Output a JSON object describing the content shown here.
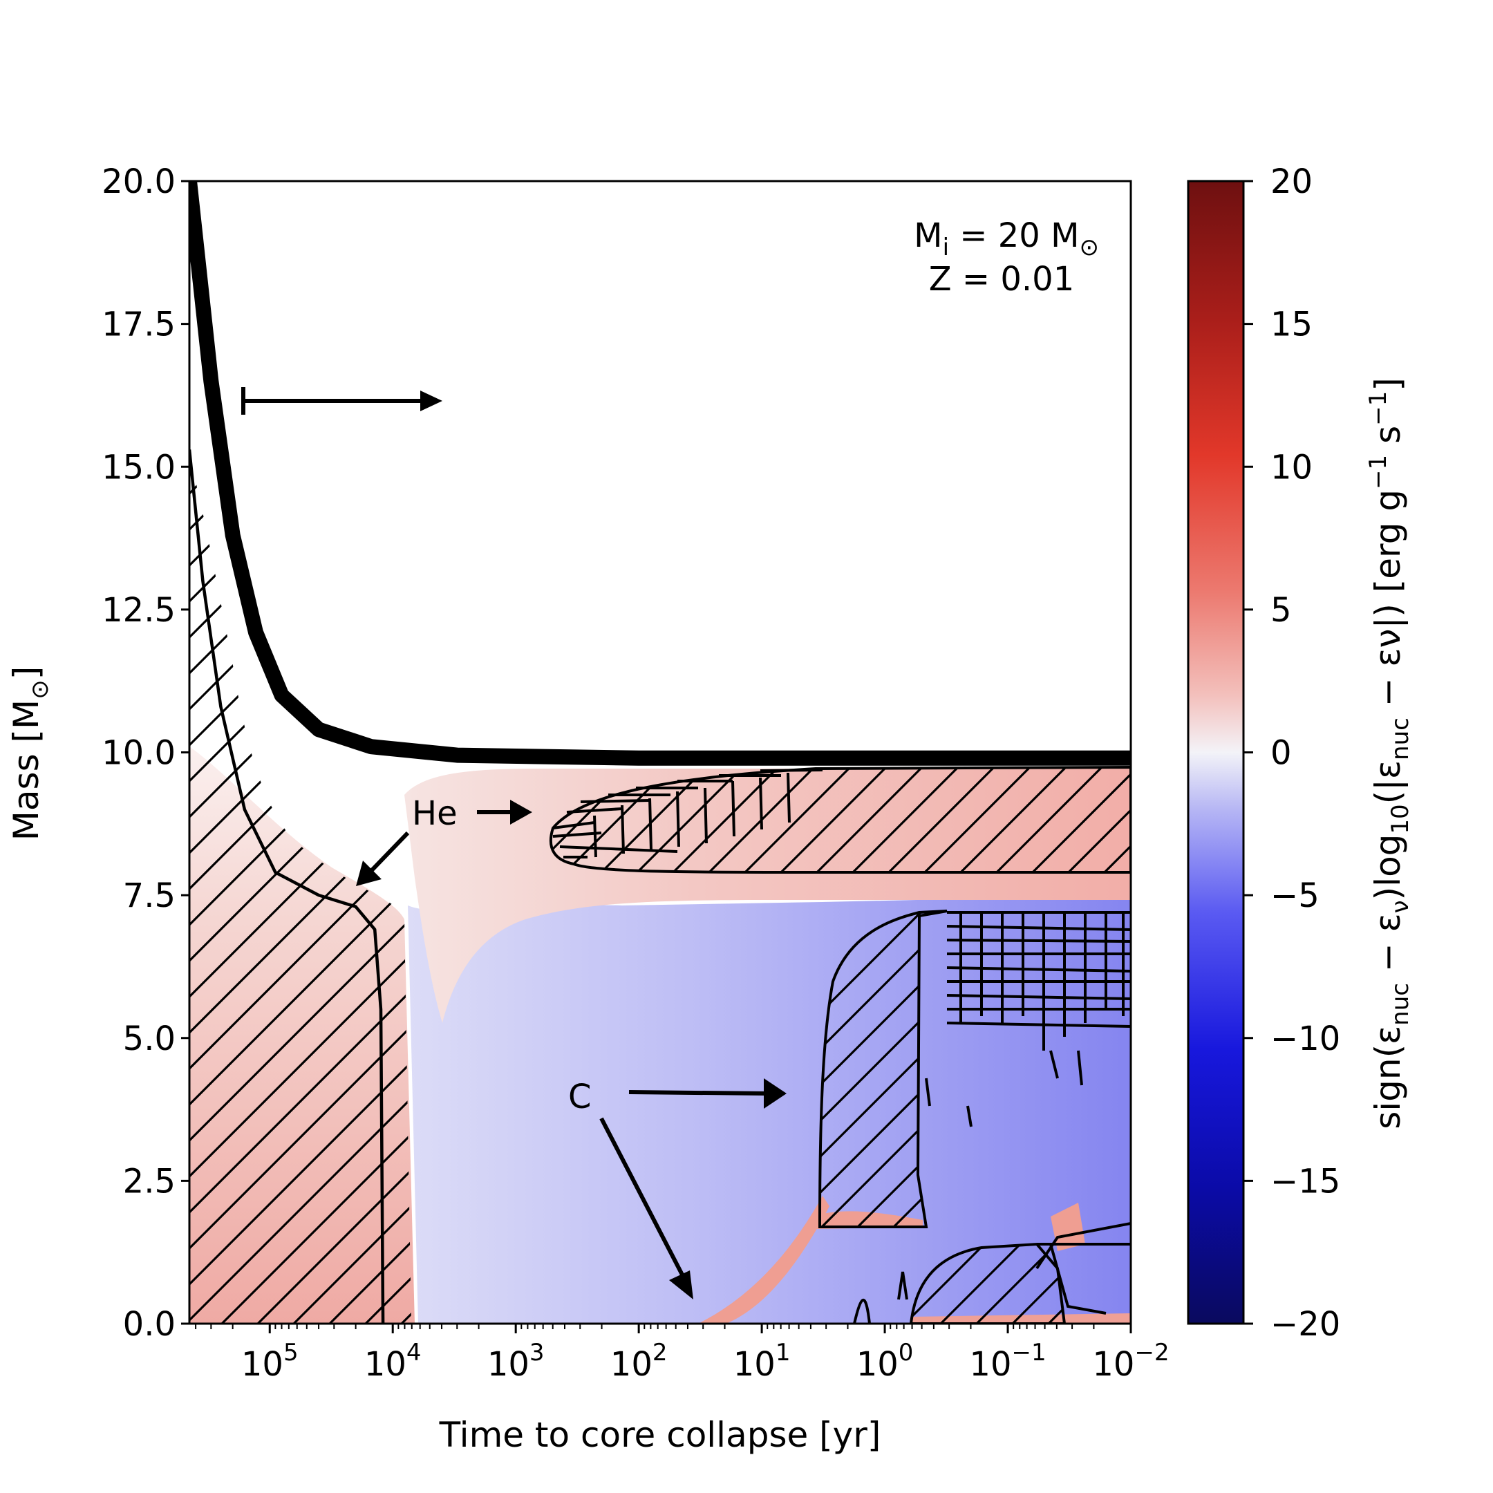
{
  "chart_data": {
    "type": "heatmap",
    "xlabel": "Time to core collapse [yr]",
    "ylabel_main": "Mass [M",
    "ylabel_sun": "⊙",
    "ylabel_end": "]",
    "xscale": "log",
    "xaxis_reversed": true,
    "xlim": [
      450000,
      0.01
    ],
    "ylim": [
      0.0,
      20.0
    ],
    "yticks": [
      0.0,
      2.5,
      5.0,
      7.5,
      10.0,
      12.5,
      15.0,
      17.5,
      20.0
    ],
    "ytick_labels": [
      "0.0",
      "2.5",
      "5.0",
      "7.5",
      "10.0",
      "12.5",
      "15.0",
      "17.5",
      "20.0"
    ],
    "xticks": [
      {
        "value": 100000,
        "base": "10",
        "exp": "5"
      },
      {
        "value": 10000,
        "base": "10",
        "exp": "4"
      },
      {
        "value": 1000,
        "base": "10",
        "exp": "3"
      },
      {
        "value": 100,
        "base": "10",
        "exp": "2"
      },
      {
        "value": 10,
        "base": "10",
        "exp": "1"
      },
      {
        "value": 1,
        "base": "10",
        "exp": "0"
      },
      {
        "value": 0.1,
        "base": "10",
        "exp": "−1"
      },
      {
        "value": 0.01,
        "base": "10",
        "exp": "−2"
      }
    ],
    "model_label_line1": "M",
    "model_label_sub": "i",
    "model_label_mid": " = 20 M",
    "model_label_sun": "⊙",
    "model_label_line2": "Z = 0.01",
    "annotations": {
      "he": "He",
      "c": "C"
    },
    "colorbar": {
      "label": "sign(ε_nuc − ε_ν)log10(|ε_nuc − εν|) [erg g^−1 s^−1]",
      "label_parts": {
        "p1": "sign(",
        "eps": "ε",
        "nuc": "nuc",
        "minus": " − ",
        "nu": "ν",
        "p2": ")log",
        "ten": "10",
        "p3": "(|",
        "p4": " − εν|) [erg g",
        "neg1": "−1",
        "p5": " s",
        "p6": "]"
      },
      "range": [
        -20,
        20
      ],
      "ticks": [
        -20,
        -15,
        -10,
        -5,
        0,
        5,
        10,
        15,
        20
      ],
      "tick_labels": [
        "−20",
        "−15",
        "−10",
        "−5",
        "0",
        "5",
        "10",
        "15",
        "20"
      ],
      "cmap": "seismic-like",
      "colors": {
        "neg_max": "#0a0a5e",
        "neg_mid": "#2525e8",
        "zero": "#f2f2f8",
        "pos_mid": "#e23a2c",
        "pos_max": "#6e1010"
      }
    },
    "series": [
      {
        "name": "mass-boundary",
        "points": [
          [
            450000,
            20.0
          ],
          [
            300000,
            16.5
          ],
          [
            200000,
            13.8
          ],
          [
            130000,
            12.1
          ],
          [
            80000,
            11.0
          ],
          [
            40000,
            10.4
          ],
          [
            15000,
            10.1
          ],
          [
            3000,
            9.95
          ],
          [
            100,
            9.9
          ],
          [
            1,
            9.9
          ],
          [
            0.01,
            9.9
          ]
        ]
      },
      {
        "name": "he-core-boundary",
        "points": [
          [
            450000,
            15.3
          ],
          [
            350000,
            13.0
          ],
          [
            250000,
            10.8
          ],
          [
            160000,
            9.0
          ],
          [
            90000,
            7.9
          ],
          [
            40000,
            7.5
          ],
          [
            20000,
            7.3
          ],
          [
            14000,
            6.9
          ],
          [
            12500,
            5.5
          ],
          [
            12000,
            0.0
          ]
        ]
      }
    ]
  }
}
